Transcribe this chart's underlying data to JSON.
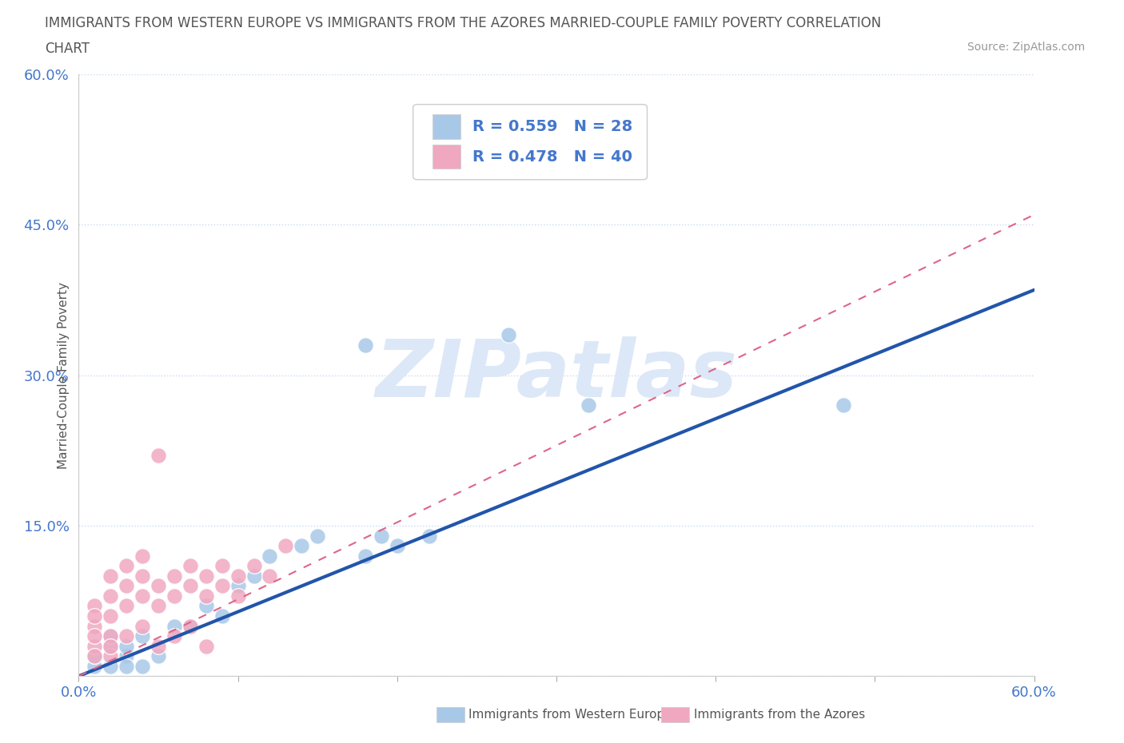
{
  "title_line1": "IMMIGRANTS FROM WESTERN EUROPE VS IMMIGRANTS FROM THE AZORES MARRIED-COUPLE FAMILY POVERTY CORRELATION",
  "title_line2": "CHART",
  "source_text": "Source: ZipAtlas.com",
  "ylabel": "Married-Couple Family Poverty",
  "xlim": [
    0.0,
    0.6
  ],
  "ylim": [
    0.0,
    0.6
  ],
  "ytick_positions": [
    0.0,
    0.15,
    0.3,
    0.45,
    0.6
  ],
  "ytick_labels": [
    "",
    "15.0%",
    "30.0%",
    "45.0%",
    "60.0%"
  ],
  "xtick_positions": [
    0.0,
    0.1,
    0.2,
    0.3,
    0.4,
    0.5,
    0.6
  ],
  "xtick_labels": [
    "0.0%",
    "",
    "",
    "",
    "",
    "",
    "60.0%"
  ],
  "blue_R": 0.559,
  "blue_N": 28,
  "pink_R": 0.478,
  "pink_N": 40,
  "blue_scatter_color": "#a8c8e8",
  "pink_scatter_color": "#f0a8c0",
  "blue_line_color": "#2255aa",
  "pink_line_color": "#dd6688",
  "grid_color": "#c8d8f0",
  "title_color": "#555555",
  "tick_label_color": "#4477cc",
  "legend_text_color": "#4477cc",
  "watermark_color": "#dce8f8",
  "background_color": "#ffffff",
  "bottom_legend_label_color": "#555555",
  "blue_line_x0": 0.0,
  "blue_line_y0": 0.0,
  "blue_line_x1": 0.6,
  "blue_line_y1": 0.385,
  "pink_line_x0": 0.0,
  "pink_line_y0": 0.0,
  "pink_line_x1": 0.6,
  "pink_line_y1": 0.46,
  "blue_x": [
    0.02,
    0.03,
    0.03,
    0.04,
    0.05,
    0.01,
    0.02,
    0.01,
    0.02,
    0.03,
    0.04,
    0.06,
    0.07,
    0.08,
    0.09,
    0.1,
    0.11,
    0.12,
    0.14,
    0.15,
    0.18,
    0.19,
    0.2,
    0.22,
    0.27,
    0.32,
    0.48,
    0.18
  ],
  "blue_y": [
    0.01,
    0.02,
    0.01,
    0.01,
    0.02,
    0.01,
    0.03,
    0.02,
    0.04,
    0.03,
    0.04,
    0.05,
    0.05,
    0.07,
    0.06,
    0.09,
    0.1,
    0.12,
    0.13,
    0.14,
    0.12,
    0.14,
    0.13,
    0.14,
    0.34,
    0.27,
    0.27,
    0.33
  ],
  "pink_x": [
    0.01,
    0.01,
    0.01,
    0.02,
    0.02,
    0.02,
    0.02,
    0.01,
    0.01,
    0.01,
    0.03,
    0.03,
    0.03,
    0.04,
    0.04,
    0.04,
    0.05,
    0.05,
    0.05,
    0.06,
    0.06,
    0.07,
    0.07,
    0.08,
    0.08,
    0.09,
    0.09,
    0.1,
    0.1,
    0.11,
    0.12,
    0.13,
    0.02,
    0.02,
    0.03,
    0.04,
    0.05,
    0.06,
    0.07,
    0.08
  ],
  "pink_y": [
    0.03,
    0.05,
    0.07,
    0.04,
    0.06,
    0.08,
    0.1,
    0.02,
    0.04,
    0.06,
    0.07,
    0.09,
    0.11,
    0.08,
    0.1,
    0.12,
    0.07,
    0.09,
    0.22,
    0.08,
    0.1,
    0.09,
    0.11,
    0.08,
    0.1,
    0.09,
    0.11,
    0.08,
    0.1,
    0.11,
    0.1,
    0.13,
    0.02,
    0.03,
    0.04,
    0.05,
    0.03,
    0.04,
    0.05,
    0.03
  ]
}
